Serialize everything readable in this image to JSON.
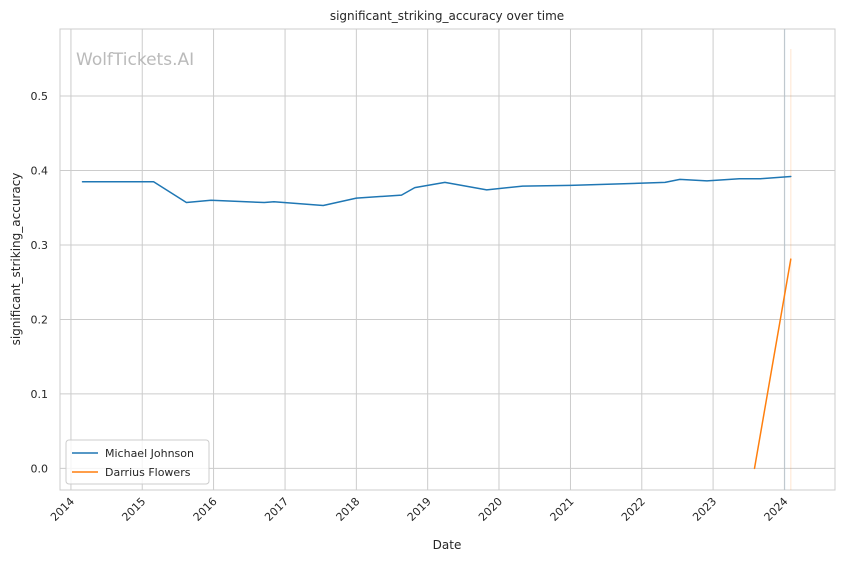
{
  "chart_data": {
    "type": "line",
    "title": "significant_striking_accuracy over time",
    "xlabel": "Date",
    "ylabel": "significant_striking_accuracy",
    "watermark": "WolfTickets.AI",
    "x_range": [
      "2013-11-06",
      "2024-09-16"
    ],
    "ylim": [
      -0.029,
      0.59
    ],
    "x_ticks": [
      "2014",
      "2015",
      "2016",
      "2017",
      "2018",
      "2019",
      "2020",
      "2021",
      "2022",
      "2023",
      "2024"
    ],
    "y_ticks": [
      0.0,
      0.1,
      0.2,
      0.3,
      0.4,
      0.5
    ],
    "y_tick_labels": [
      "0.0",
      "0.1",
      "0.2",
      "0.3",
      "0.4",
      "0.5"
    ],
    "grid": true,
    "legend_position": "lower-left",
    "series": [
      {
        "name": "Michael Johnson",
        "color": "#1f77b4",
        "points": [
          [
            "2014-03-01",
            0.385
          ],
          [
            "2015-02-28",
            0.385
          ],
          [
            "2015-08-15",
            0.357
          ],
          [
            "2015-12-19",
            0.36
          ],
          [
            "2016-09-17",
            0.357
          ],
          [
            "2016-11-05",
            0.358
          ],
          [
            "2017-07-15",
            0.353
          ],
          [
            "2018-01-01",
            0.363
          ],
          [
            "2018-08-20",
            0.367
          ],
          [
            "2018-10-27",
            0.377
          ],
          [
            "2019-03-30",
            0.384
          ],
          [
            "2019-10-30",
            0.374
          ],
          [
            "2020-05-01",
            0.379
          ],
          [
            "2021-01-01",
            0.38
          ],
          [
            "2022-04-30",
            0.384
          ],
          [
            "2022-07-15",
            0.388
          ],
          [
            "2022-12-01",
            0.386
          ],
          [
            "2023-05-15",
            0.389
          ],
          [
            "2023-09-01",
            0.389
          ],
          [
            "2024-02-03",
            0.392
          ]
        ]
      },
      {
        "name": "Darrius Flowers",
        "color": "#ff7f0e",
        "points": [
          [
            "2023-08-01",
            0.0
          ],
          [
            "2024-02-03",
            0.281
          ]
        ]
      }
    ]
  }
}
